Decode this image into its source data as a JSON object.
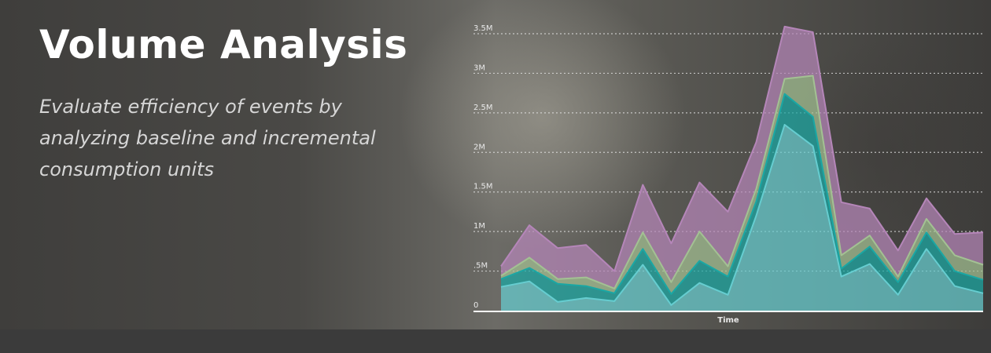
{
  "hero": {
    "title": "Volume Analysis",
    "subtitle": "Evaluate efficiency of events by analyzing baseline and incremental consumption units"
  },
  "colors": {
    "background": "#4a4946",
    "text": "#ffffff",
    "subtitle": "#d6d6d6",
    "grid": "#e6e6e6",
    "axis": "#ffffff"
  },
  "chart_data": {
    "type": "area",
    "stacked": true,
    "title": "",
    "xlabel": "Time",
    "ylabel": "",
    "ylim": [
      0,
      3500000
    ],
    "yticks": [
      0,
      500000,
      1000000,
      1500000,
      2000000,
      2500000,
      3000000,
      3500000
    ],
    "ytick_labels": [
      "0",
      ".5M",
      "1M",
      "1.5M",
      "2M",
      "2.5M",
      "3M",
      "3.5M"
    ],
    "grid": true,
    "legend": "none",
    "x": [
      1,
      2,
      3,
      4,
      5,
      6,
      7,
      8,
      9,
      10,
      11,
      12,
      13,
      14,
      15,
      16,
      17,
      18
    ],
    "series": [
      {
        "color": "#66cdd0",
        "values": [
          300000,
          370000,
          110000,
          160000,
          120000,
          580000,
          70000,
          350000,
          200000,
          1200000,
          2350000,
          2080000,
          430000,
          590000,
          200000,
          780000,
          310000,
          220000
        ]
      },
      {
        "color": "#1aa7a4",
        "values": [
          100000,
          170000,
          230000,
          150000,
          100000,
          200000,
          140000,
          280000,
          230000,
          180000,
          390000,
          370000,
          100000,
          220000,
          160000,
          210000,
          190000,
          170000
        ]
      },
      {
        "color": "#a3c193",
        "values": [
          40000,
          130000,
          60000,
          110000,
          60000,
          210000,
          150000,
          370000,
          130000,
          160000,
          190000,
          520000,
          170000,
          140000,
          70000,
          170000,
          200000,
          190000
        ]
      },
      {
        "color": "#b586b9",
        "values": [
          120000,
          410000,
          390000,
          410000,
          220000,
          600000,
          490000,
          620000,
          690000,
          590000,
          660000,
          550000,
          670000,
          340000,
          330000,
          260000,
          270000,
          410000
        ]
      }
    ]
  }
}
